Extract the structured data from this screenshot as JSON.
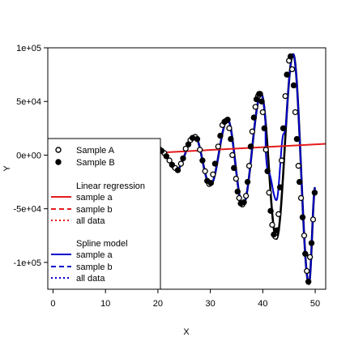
{
  "chart_data": {
    "type": "line",
    "xlabel": "X",
    "ylabel": "Y",
    "xlim": [
      -1,
      52
    ],
    "ylim": [
      -125000,
      100000
    ],
    "x_ticks": [
      0,
      10,
      20,
      30,
      40,
      50
    ],
    "x_tick_labels": [
      "0",
      "10",
      "20",
      "30",
      "40",
      "50"
    ],
    "y_ticks": [
      100000,
      50000,
      0,
      -50000,
      -100000
    ],
    "y_tick_labels": [
      "1e+05",
      "5e+04",
      "0e+00",
      "-5e+04",
      "-1e+05"
    ],
    "grid": false,
    "legend_placement": "left",
    "legend": {
      "samples": [
        {
          "label": "Sample A",
          "marker": "open-circle"
        },
        {
          "label": "Sample B",
          "marker": "filled-circle"
        }
      ],
      "linear_title": "Linear regression",
      "linear_items": [
        "sample a",
        "sample b",
        "all data"
      ],
      "spline_title": "Spline model",
      "spline_items": [
        "sample a",
        "sample b",
        "all data"
      ]
    },
    "colors": {
      "linear": "#e41a1c",
      "spline": "#0000cc",
      "data_line": "#000000"
    },
    "linear_regression": {
      "x": [
        0,
        52
      ],
      "y": [
        -3000,
        10500
      ]
    },
    "curve_extrema": [
      {
        "x": 20.5,
        "y": 6000
      },
      {
        "x": 23.5,
        "y": -14000
      },
      {
        "x": 27,
        "y": 18000
      },
      {
        "x": 30,
        "y": -28000
      },
      {
        "x": 33.3,
        "y": 33000
      },
      {
        "x": 36.2,
        "y": -47000
      },
      {
        "x": 39.7,
        "y": 57000
      },
      {
        "x": 42.6,
        "y": -78000
      },
      {
        "x": 45.8,
        "y": 94000
      },
      {
        "x": 48.8,
        "y": -120000
      },
      {
        "x": 50,
        "y": -30000
      }
    ],
    "spline_deviation": {
      "x": [
        41,
        42.6,
        44
      ],
      "y": [
        -15000,
        -42000,
        20000
      ]
    },
    "series": [
      {
        "label": "Sample A",
        "marker": "open",
        "x": [
          20.3,
          21.2,
          22.2,
          23.3,
          24.4,
          25.3,
          26.2,
          27.1,
          28.0,
          29.0,
          29.8,
          30.5,
          31.5,
          32.3,
          33.0,
          33.6,
          34.2,
          34.9,
          35.5,
          36.1,
          36.8,
          37.4,
          38.0,
          38.6,
          39.1,
          39.5,
          40.0,
          40.6,
          41.2,
          41.8,
          42.4,
          43.0,
          43.6,
          44.3,
          45.0,
          45.6,
          46.2,
          46.8,
          47.3,
          47.9,
          48.4,
          49.0,
          49.6
        ],
        "y": [
          5500,
          2000,
          -5000,
          -12000,
          -8000,
          6000,
          14000,
          17000,
          5000,
          -15000,
          -27000,
          -18000,
          8000,
          28000,
          32000,
          25000,
          0,
          -22000,
          -40000,
          -46000,
          -38000,
          -10000,
          22000,
          45000,
          55000,
          57000,
          40000,
          5000,
          -35000,
          -65000,
          -76000,
          -55000,
          -5000,
          55000,
          88000,
          80000,
          40000,
          -10000,
          -40000,
          -75000,
          -108000,
          -95000,
          -60000
        ]
      },
      {
        "label": "Sample B",
        "marker": "filled",
        "x": [
          20.7,
          21.6,
          22.7,
          23.8,
          24.8,
          25.8,
          26.6,
          27.5,
          28.5,
          29.4,
          30.1,
          30.9,
          31.9,
          32.7,
          33.3,
          33.9,
          34.5,
          35.2,
          35.8,
          36.4,
          37.1,
          37.7,
          38.3,
          38.8,
          39.3,
          39.8,
          40.3,
          40.9,
          41.5,
          42.1,
          42.7,
          43.3,
          43.9,
          44.6,
          45.3,
          45.9,
          46.5,
          47.0,
          47.6,
          48.1,
          48.7,
          49.3,
          49.9
        ],
        "y": [
          4000,
          -1000,
          -9000,
          -14000,
          -3000,
          10000,
          16000,
          15000,
          -5000,
          -24000,
          -26000,
          -8000,
          18000,
          31000,
          33000,
          15000,
          -12000,
          -34000,
          -45000,
          -44000,
          -25000,
          8000,
          35000,
          52000,
          57000,
          50000,
          25000,
          -15000,
          -52000,
          -74000,
          -70000,
          -30000,
          25000,
          75000,
          92000,
          65000,
          15000,
          -25000,
          -58000,
          -92000,
          -118000,
          -82000,
          -35000
        ]
      }
    ]
  }
}
